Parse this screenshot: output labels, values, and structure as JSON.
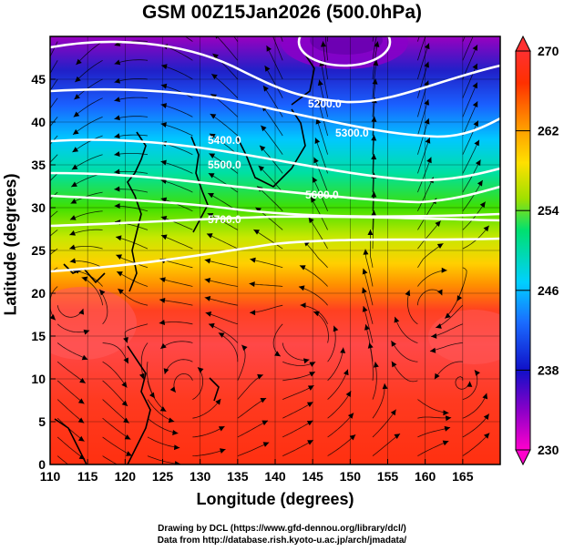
{
  "title": "GSM 00Z15Jan2026 (500.0hPa)",
  "x_axis": {
    "label": "Longitude (degrees)",
    "min": 110,
    "max": 170,
    "ticks": [
      "110",
      "115",
      "120",
      "125",
      "130",
      "135",
      "140",
      "145",
      "150",
      "155",
      "160",
      "165"
    ]
  },
  "y_axis": {
    "label": "Latitude  (degrees)",
    "min": 0,
    "max": 50,
    "ticks": [
      "0",
      "5",
      "10",
      "15",
      "20",
      "25",
      "30",
      "35",
      "40",
      "45"
    ]
  },
  "colorbar": {
    "min": 230,
    "max": 270,
    "ticks": [
      "230",
      "238",
      "246",
      "254",
      "262",
      "270"
    ],
    "quantity": "temperature (K)",
    "colors": [
      "#ff00cc",
      "#8a00c8",
      "#1010c8",
      "#1a6cff",
      "#00d0ff",
      "#00e070",
      "#a0e000",
      "#ffe000",
      "#ff9000",
      "#ff3000",
      "#ff3030"
    ]
  },
  "contour_labels": [
    "5200.0",
    "5300.0",
    "5400.0",
    "5500.0",
    "5600.0",
    "5700.0"
  ],
  "map": {
    "region": "Western North Pacific / East Asia",
    "fields": [
      "temperature shading",
      "geopotential height contours (white)",
      "wind streamlines (black)"
    ]
  },
  "credits": {
    "line1": "Drawing by DCL (https://www.gfd-dennou.org/library/dcl/)",
    "line2": "Data from http://database.rish.kyoto-u.ac.jp/arch/jmadata/"
  }
}
